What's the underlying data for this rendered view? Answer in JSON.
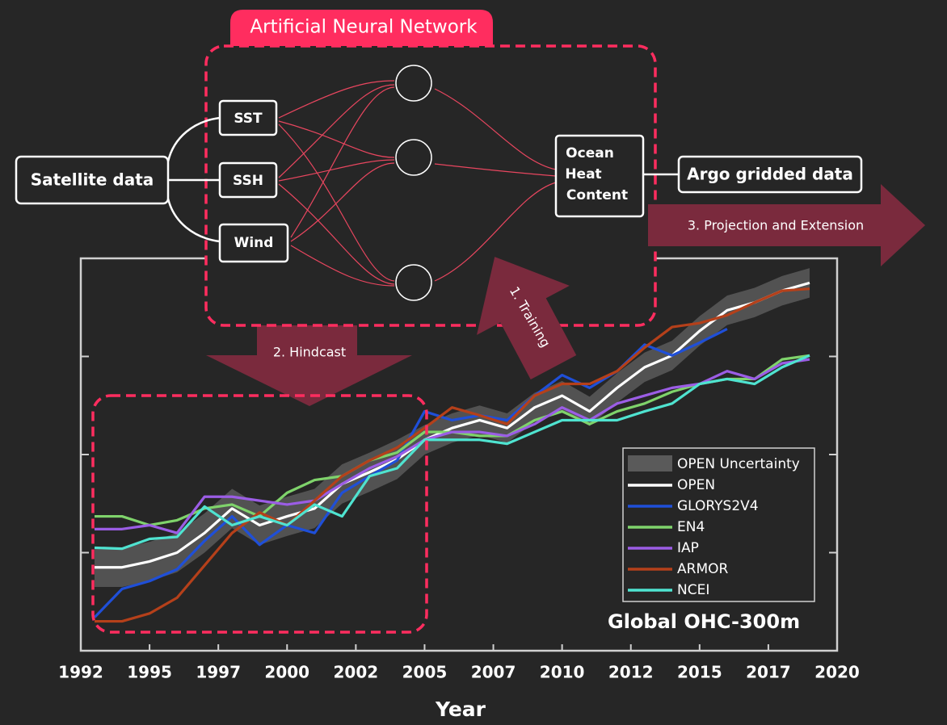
{
  "diagram": {
    "title": "Artificial Neural Network",
    "source": "Satellite data",
    "inputs": [
      "SST",
      "SSH",
      "Wind"
    ],
    "output": [
      "Ocean",
      "Heat",
      "Content"
    ],
    "target": "Argo gridded data",
    "arrows": [
      "1. Training",
      "2. Hindcast",
      "3. Projection and Extension"
    ]
  },
  "chart_data": {
    "type": "line",
    "label": "Global OHC-300m",
    "x_label": "Year",
    "x": [
      1992.5,
      1993.5,
      1994.5,
      1995.5,
      1996.5,
      1997.5,
      1998.5,
      1999.5,
      2000.5,
      2001.5,
      2002.5,
      2003.5,
      2004.5,
      2005.5,
      2006.5,
      2007.5,
      2008.5,
      2009.5,
      2010.5,
      2011.5,
      2012.5,
      2013.5,
      2014.5,
      2015.5,
      2016.5,
      2017.5,
      2018.5
    ],
    "xlim": [
      1992,
      2019.5
    ],
    "xticks": [
      {
        "value": 1992,
        "label": "1992"
      },
      {
        "value": 1994.5,
        "label": "1995"
      },
      {
        "value": 1997,
        "label": "1997"
      },
      {
        "value": 1999.5,
        "label": "2000"
      },
      {
        "value": 2002,
        "label": "2002"
      },
      {
        "value": 2004.5,
        "label": "2005"
      },
      {
        "value": 2007,
        "label": "2007"
      },
      {
        "value": 2009.5,
        "label": "2010"
      },
      {
        "value": 2012,
        "label": "2012"
      },
      {
        "value": 2014.5,
        "label": "2015"
      },
      {
        "value": 2017,
        "label": "2017"
      },
      {
        "value": 2019.5,
        "label": "2020"
      }
    ],
    "ylim": [
      0,
      4
    ],
    "yticks": [
      1,
      2,
      3
    ],
    "band": {
      "name": "OPEN Uncertainty",
      "color": "#5a5a5a",
      "lower": [
        0.65,
        0.65,
        0.71,
        0.8,
        1.0,
        1.25,
        1.08,
        1.17,
        1.25,
        1.5,
        1.62,
        1.75,
        2.0,
        2.12,
        2.2,
        2.12,
        2.33,
        2.45,
        2.29,
        2.53,
        2.74,
        2.86,
        3.11,
        3.32,
        3.4,
        3.52,
        3.6
      ],
      "upper": [
        1.05,
        1.05,
        1.11,
        1.2,
        1.4,
        1.65,
        1.48,
        1.57,
        1.65,
        1.9,
        2.02,
        2.15,
        2.3,
        2.42,
        2.5,
        2.42,
        2.63,
        2.75,
        2.59,
        2.83,
        3.04,
        3.16,
        3.41,
        3.62,
        3.7,
        3.82,
        3.9
      ]
    },
    "series": [
      {
        "name": "OPEN",
        "color": "#ffffff",
        "values": [
          0.85,
          0.85,
          0.91,
          1.0,
          1.2,
          1.45,
          1.28,
          1.37,
          1.45,
          1.7,
          1.82,
          1.95,
          2.15,
          2.27,
          2.35,
          2.27,
          2.48,
          2.6,
          2.44,
          2.68,
          2.89,
          3.01,
          3.26,
          3.47,
          3.55,
          3.67,
          3.75
        ]
      },
      {
        "name": "GLORYS2V4",
        "color": "#1f4fd8",
        "values": [
          0.34,
          0.63,
          0.71,
          0.83,
          1.12,
          1.37,
          1.08,
          1.28,
          1.2,
          1.61,
          1.78,
          1.94,
          2.44,
          2.35,
          2.4,
          2.35,
          2.6,
          2.81,
          2.68,
          2.85,
          3.12,
          3.01,
          3.14,
          3.28,
          null,
          null,
          null
        ]
      },
      {
        "name": "EN4",
        "color": "#7fd36b",
        "values": [
          1.37,
          1.37,
          1.28,
          1.33,
          1.45,
          1.49,
          1.37,
          1.61,
          1.74,
          1.78,
          1.94,
          2.02,
          2.23,
          2.23,
          2.19,
          2.19,
          2.35,
          2.44,
          2.31,
          2.44,
          2.52,
          2.64,
          2.72,
          2.77,
          2.77,
          2.97,
          3.01
        ]
      },
      {
        "name": "IAP",
        "color": "#9b5de5",
        "values": [
          1.24,
          1.24,
          1.28,
          1.2,
          1.57,
          1.57,
          1.53,
          1.49,
          1.53,
          1.7,
          1.86,
          1.98,
          2.15,
          2.23,
          2.23,
          2.19,
          2.31,
          2.48,
          2.35,
          2.52,
          2.6,
          2.68,
          2.72,
          2.85,
          2.77,
          2.93,
          2.97
        ]
      },
      {
        "name": "ARMOR",
        "color": "#b5401a",
        "values": [
          0.3,
          0.3,
          0.38,
          0.54,
          0.87,
          1.2,
          1.41,
          1.28,
          1.53,
          1.78,
          1.94,
          2.07,
          2.27,
          2.48,
          2.4,
          2.31,
          2.6,
          2.72,
          2.72,
          2.85,
          3.09,
          3.3,
          3.34,
          3.42,
          3.55,
          3.67,
          3.69
        ]
      },
      {
        "name": "NCEI",
        "color": "#4fe3d0",
        "values": [
          1.05,
          1.04,
          1.14,
          1.16,
          1.47,
          1.28,
          1.37,
          1.28,
          1.49,
          1.37,
          1.78,
          1.86,
          2.15,
          2.15,
          2.15,
          2.11,
          2.23,
          2.35,
          2.35,
          2.35,
          2.44,
          2.52,
          2.72,
          2.77,
          2.72,
          2.89,
          3.01
        ]
      }
    ]
  }
}
